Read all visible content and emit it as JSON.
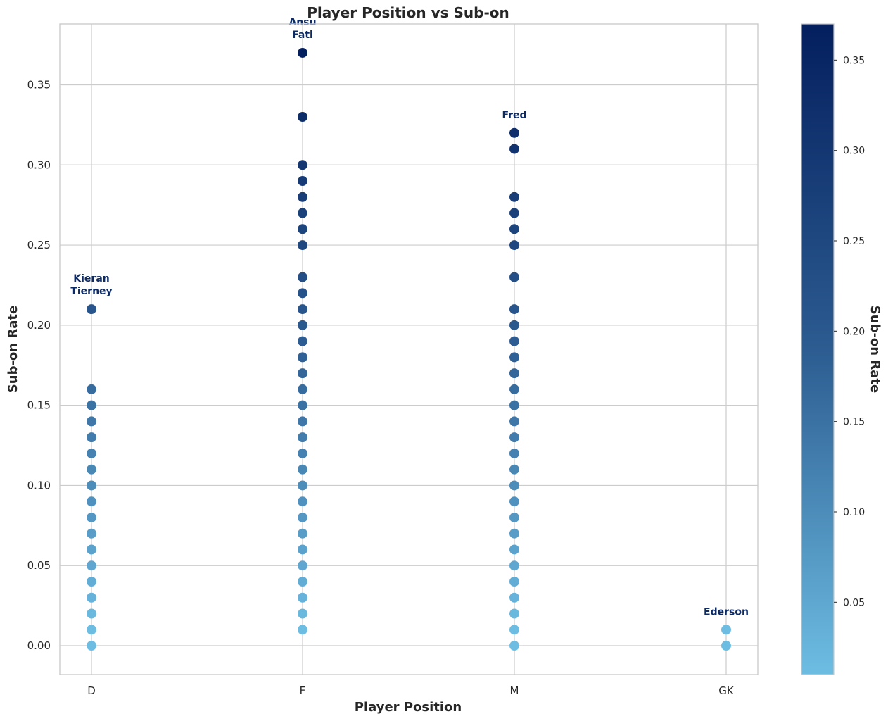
{
  "chart_data": {
    "type": "scatter",
    "title": "Player Position vs Sub-on",
    "xlabel": "Player Position",
    "ylabel": "Sub-on Rate",
    "categories": [
      "D",
      "F",
      "M",
      "GK"
    ],
    "ylim": [
      -0.018,
      0.388
    ],
    "yticks": [
      "0.00",
      "0.05",
      "0.10",
      "0.15",
      "0.20",
      "0.25",
      "0.30",
      "0.35"
    ],
    "grid": true,
    "points": {
      "D": [
        0.0,
        0.01,
        0.02,
        0.03,
        0.04,
        0.05,
        0.06,
        0.07,
        0.08,
        0.09,
        0.1,
        0.11,
        0.12,
        0.13,
        0.14,
        0.15,
        0.16,
        0.21
      ],
      "F": [
        0.01,
        0.02,
        0.03,
        0.04,
        0.05,
        0.06,
        0.07,
        0.08,
        0.09,
        0.1,
        0.11,
        0.12,
        0.13,
        0.14,
        0.15,
        0.16,
        0.17,
        0.18,
        0.19,
        0.2,
        0.21,
        0.22,
        0.23,
        0.25,
        0.26,
        0.27,
        0.28,
        0.29,
        0.3,
        0.33,
        0.37
      ],
      "M": [
        0.0,
        0.01,
        0.02,
        0.03,
        0.04,
        0.05,
        0.06,
        0.07,
        0.08,
        0.09,
        0.1,
        0.11,
        0.12,
        0.13,
        0.14,
        0.15,
        0.16,
        0.17,
        0.18,
        0.19,
        0.2,
        0.21,
        0.23,
        0.25,
        0.26,
        0.27,
        0.28,
        0.31,
        0.32
      ],
      "GK": [
        0.0,
        0.01
      ]
    },
    "annotations": [
      {
        "category": "D",
        "value": 0.21,
        "lines": [
          "Kieran",
          "Tierney"
        ]
      },
      {
        "category": "F",
        "value": 0.37,
        "lines": [
          "Ansu",
          "Fati"
        ]
      },
      {
        "category": "M",
        "value": 0.32,
        "lines": [
          "Fred"
        ]
      },
      {
        "category": "GK",
        "value": 0.01,
        "lines": [
          "Ederson"
        ]
      }
    ],
    "colorbar": {
      "label": "Sub-on Rate",
      "range": [
        0.01,
        0.37
      ],
      "ticks": [
        "0.05",
        "0.10",
        "0.15",
        "0.20",
        "0.25",
        "0.30",
        "0.35"
      ],
      "colors": [
        "#6dbde3",
        "#2c5c91",
        "#041f5e"
      ]
    }
  }
}
